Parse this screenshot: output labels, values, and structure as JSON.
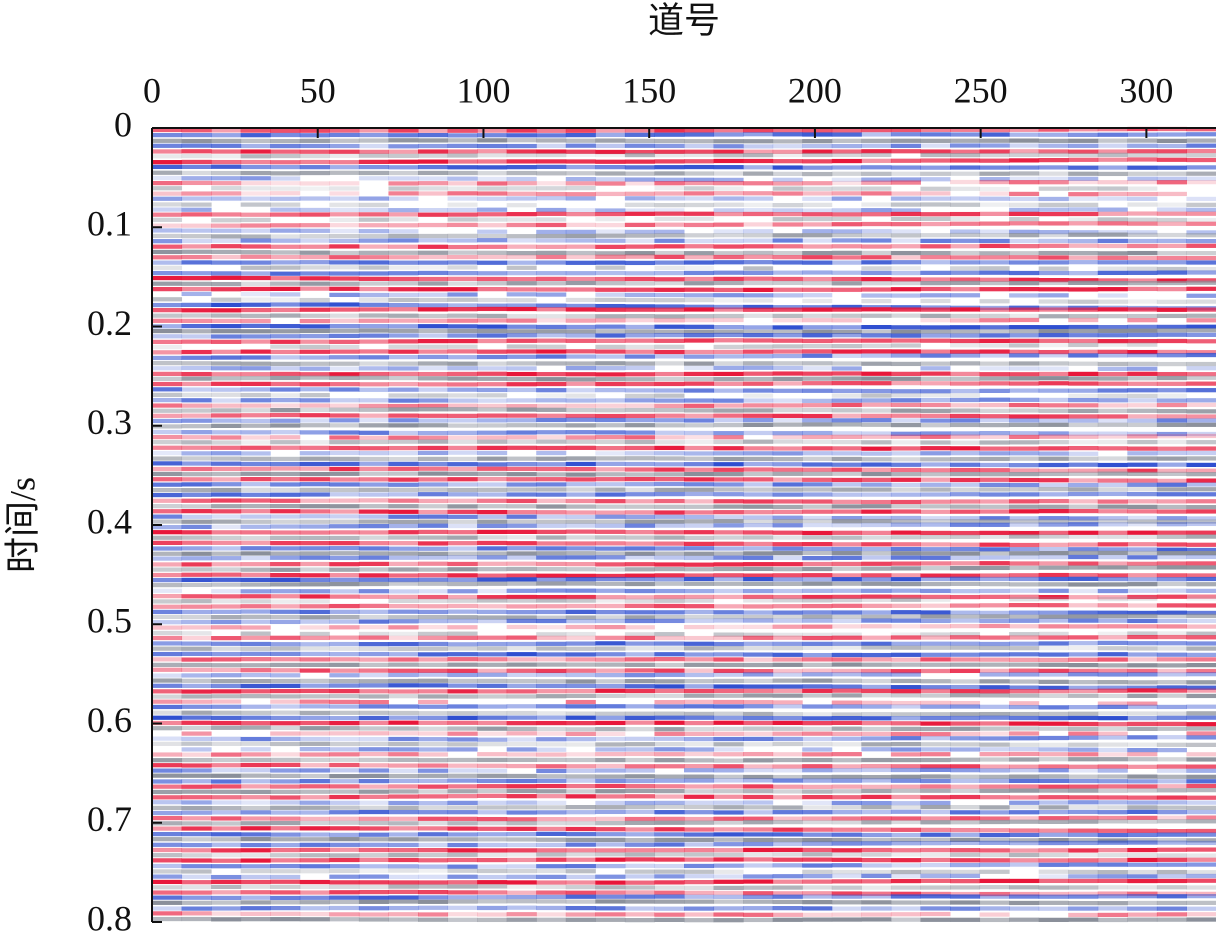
{
  "chart_data": {
    "type": "seismic-section",
    "title": "道号",
    "y_label": "时间/s",
    "xlim": [
      0,
      321
    ],
    "xticks": [
      0,
      50,
      100,
      150,
      200,
      250,
      300
    ],
    "ylim": [
      0,
      0.8
    ],
    "yticks": [
      0,
      0.1,
      0.2,
      0.3,
      0.4,
      0.5,
      0.6,
      0.7,
      0.8
    ],
    "colors": [
      "#e8173a",
      "#2f4fd0",
      "#8a8f9a"
    ]
  }
}
